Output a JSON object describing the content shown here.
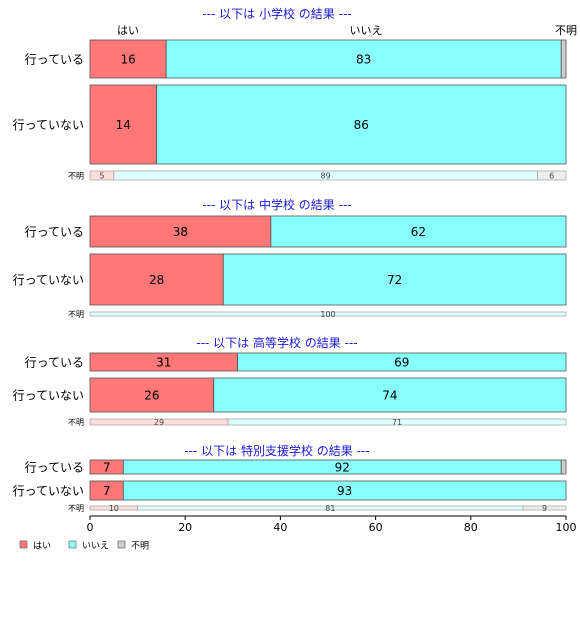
{
  "chart_data": {
    "type": "bar",
    "orientation": "horizontal",
    "stacked": true,
    "percent_scale": true,
    "xlim": [
      0,
      100
    ],
    "x_ticks": [
      "0",
      "20",
      "40",
      "60",
      "80",
      "100"
    ],
    "column_labels": [
      "はい",
      "いいえ",
      "不明"
    ],
    "colors": {
      "hai": "#ff7777",
      "iie": "#88ffff",
      "fumei": "#cccccc",
      "hai_light": "#ffdddd",
      "iie_light": "#ddffff",
      "fumei_light": "#eeeeee",
      "title": "#1a1ad6"
    },
    "legend": {
      "placement": "bottom-left",
      "items": [
        {
          "label": "はい",
          "color": "#ff7777"
        },
        {
          "label": "いいえ",
          "color": "#88ffff"
        },
        {
          "label": "不明",
          "color": "#cccccc"
        }
      ]
    },
    "panels": [
      {
        "title": "--- 以下は 小学校 の結果 ---",
        "rows": [
          {
            "label": "行っている",
            "values": [
              16,
              83,
              1
            ],
            "labels": [
              "16",
              "83",
              ""
            ]
          },
          {
            "label": "行っていない",
            "values": [
              14,
              86,
              0
            ],
            "labels": [
              "14",
              "86",
              ""
            ]
          },
          {
            "label": "不明",
            "values": [
              5,
              89,
              6
            ],
            "labels": [
              "5",
              "89",
              "6"
            ]
          }
        ]
      },
      {
        "title": "--- 以下は 中学校 の結果 ---",
        "rows": [
          {
            "label": "行っている",
            "values": [
              38,
              62,
              0
            ],
            "labels": [
              "38",
              "62",
              ""
            ]
          },
          {
            "label": "行っていない",
            "values": [
              28,
              72,
              0
            ],
            "labels": [
              "28",
              "72",
              ""
            ]
          },
          {
            "label": "不明",
            "values": [
              0,
              100,
              0
            ],
            "labels": [
              "",
              "100",
              ""
            ]
          }
        ]
      },
      {
        "title": "--- 以下は 高等学校 の結果 ---",
        "rows": [
          {
            "label": "行っている",
            "values": [
              31,
              69,
              0
            ],
            "labels": [
              "31",
              "69",
              ""
            ]
          },
          {
            "label": "行っていない",
            "values": [
              26,
              74,
              0
            ],
            "labels": [
              "26",
              "74",
              ""
            ]
          },
          {
            "label": "不明",
            "values": [
              29,
              71,
              0
            ],
            "labels": [
              "29",
              "71",
              ""
            ]
          }
        ]
      },
      {
        "title": "--- 以下は 特別支援学校 の結果 ---",
        "rows": [
          {
            "label": "行っている",
            "values": [
              7,
              92,
              1
            ],
            "labels": [
              "7",
              "92",
              ""
            ]
          },
          {
            "label": "行っていない",
            "values": [
              7,
              93,
              0
            ],
            "labels": [
              "7",
              "93",
              ""
            ]
          },
          {
            "label": "不明",
            "values": [
              10,
              81,
              9
            ],
            "labels": [
              "10",
              "81",
              "9"
            ]
          }
        ]
      }
    ]
  }
}
